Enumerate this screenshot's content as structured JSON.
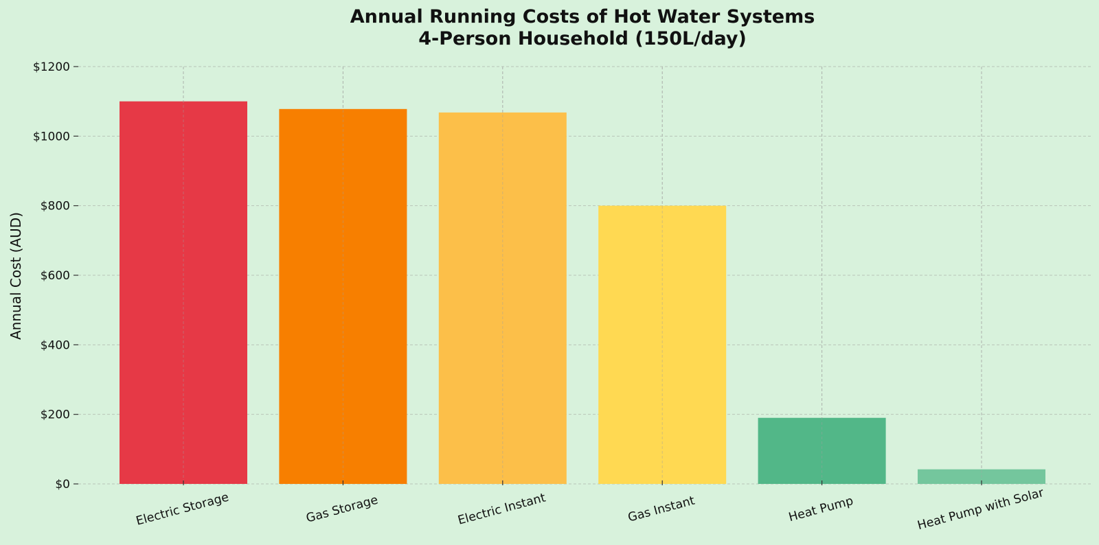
{
  "chart_data": {
    "type": "bar",
    "title": "Annual Running Costs of Hot Water Systems",
    "subtitle": "4-Person Household (150L/day)",
    "xlabel": "",
    "ylabel": "Annual Cost (AUD)",
    "ylim": [
      0,
      1200
    ],
    "yticks": [
      0,
      200,
      400,
      600,
      800,
      1000,
      1200
    ],
    "ytick_labels": [
      "$0",
      "$200",
      "$400",
      "$600",
      "$800",
      "$1000",
      "$1200"
    ],
    "categories": [
      "Electric Storage",
      "Gas Storage",
      "Electric Instant",
      "Gas Instant",
      "Heat Pump",
      "Heat Pump with Solar"
    ],
    "values": [
      1100,
      1078,
      1068,
      800,
      190,
      42
    ],
    "colors": [
      "#e63946",
      "#f77f00",
      "#fcbf49",
      "#ffd952",
      "#52b788",
      "#74c69d"
    ],
    "background": "#d8f2dc",
    "grid": true,
    "legend": "none"
  }
}
